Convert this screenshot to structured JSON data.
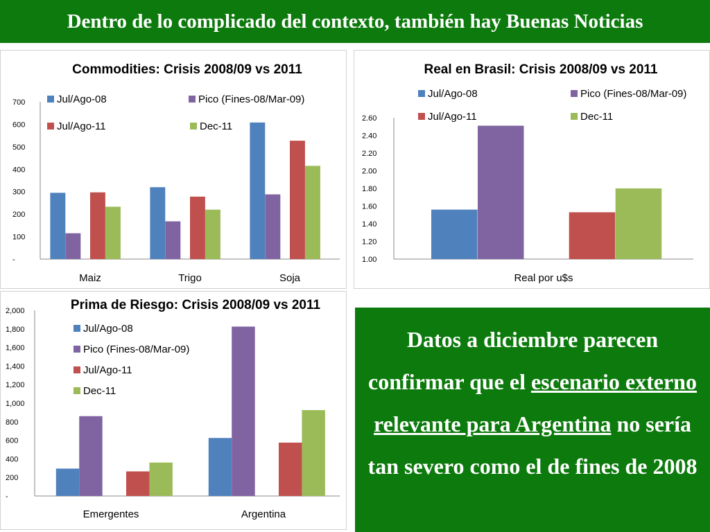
{
  "header": {
    "title": "Dentro de lo complicado del contexto, también hay Buenas Noticias"
  },
  "colors": {
    "header_bg": "#0c7a0c",
    "series": [
      "#4f81bd",
      "#8064a2",
      "#c0504d",
      "#9bbb59"
    ]
  },
  "message": {
    "part1": "Datos a diciembre parecen confirmar que el ",
    "underlined": "escenario externo relevante para Argentina",
    "part2": " no sería tan severo como el de fines de 2008"
  },
  "chart_data": [
    {
      "id": "commodities",
      "type": "bar",
      "title": "Commodities: Crisis 2008/09 vs 2011",
      "categories": [
        "Maiz",
        "Trigo",
        "Soja"
      ],
      "series": [
        {
          "name": "Jul/Ago-08",
          "values": [
            295,
            320,
            608
          ]
        },
        {
          "name": "Pico (Fines-08/Mar-09)",
          "values": [
            115,
            168,
            288
          ]
        },
        {
          "name": "Jul/Ago-11",
          "values": [
            297,
            278,
            527
          ]
        },
        {
          "name": "Dec-11",
          "values": [
            233,
            220,
            415
          ]
        }
      ],
      "ylim": [
        0,
        700
      ],
      "yticks": [
        "-",
        "100",
        "200",
        "300",
        "400",
        "500",
        "600",
        "700"
      ],
      "legend": "top"
    },
    {
      "id": "real",
      "type": "bar",
      "title": "Real en Brasil: Crisis 2008/09  vs 2011",
      "categories": [
        "Real por u$s"
      ],
      "series": [
        {
          "name": "Jul/Ago-08",
          "values": [
            1.56
          ]
        },
        {
          "name": "Pico (Fines-08/Mar-09)",
          "values": [
            2.51
          ]
        },
        {
          "name": "Jul/Ago-11",
          "values": [
            1.53
          ]
        },
        {
          "name": "Dec-11",
          "values": [
            1.8
          ]
        }
      ],
      "ylim": [
        1.0,
        2.6
      ],
      "yticks": [
        "1.00",
        "1.20",
        "1.40",
        "1.60",
        "1.80",
        "2.00",
        "2.20",
        "2.40",
        "2.60"
      ],
      "legend": "top"
    },
    {
      "id": "riesgo",
      "type": "bar",
      "title": "Prima de Riesgo: Crisis 2008/09 vs 2011",
      "categories": [
        "Emergentes",
        "Argentina"
      ],
      "series": [
        {
          "name": "Jul/Ago-08",
          "values": [
            295,
            625
          ]
        },
        {
          "name": "Pico (Fines-08/Mar-09)",
          "values": [
            860,
            1825
          ]
        },
        {
          "name": "Jul/Ago-11",
          "values": [
            265,
            575
          ]
        },
        {
          "name": "Dec-11",
          "values": [
            360,
            925
          ]
        }
      ],
      "ylim": [
        0,
        2000
      ],
      "yticks": [
        "-",
        "200",
        "400",
        "600",
        "800",
        "1,000",
        "1,200",
        "1,400",
        "1,600",
        "1,800",
        "2,000"
      ],
      "legend": "left"
    }
  ]
}
